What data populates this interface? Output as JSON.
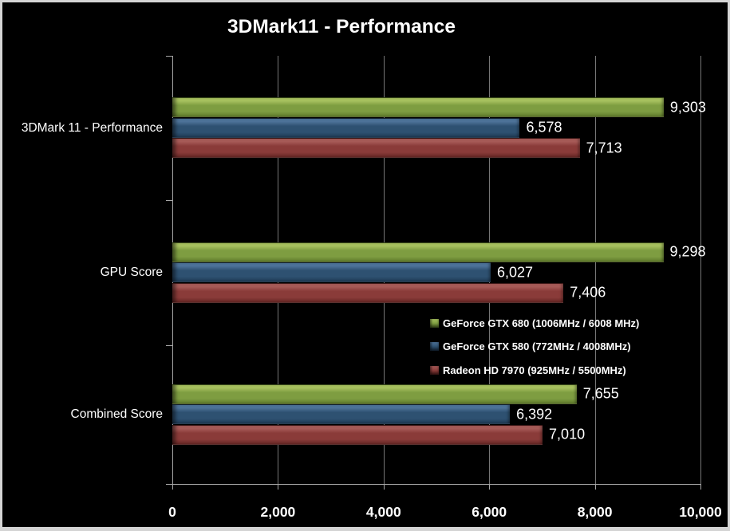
{
  "title": "3DMark11 - Performance",
  "chart_data": {
    "type": "bar",
    "orientation": "horizontal",
    "title": "3DMark11 - Performance",
    "categories": [
      "3DMark 11 - Performance",
      "GPU Score",
      "Combined Score"
    ],
    "series": [
      {
        "name": "GeForce GTX 680 (1006MHz / 6008 MHz)",
        "values": [
          9303,
          9298,
          7655
        ],
        "value_labels": [
          "9,303",
          "9,298",
          "7,655"
        ],
        "color": "#7e9d41",
        "color_light": "#a6c05e",
        "color_dark": "#5f7b2c"
      },
      {
        "name": "GeForce GTX 580 (772MHz / 4008MHz)",
        "values": [
          6578,
          6027,
          6392
        ],
        "value_labels": [
          "6,578",
          "6,027",
          "6,392"
        ],
        "color": "#2e5171",
        "color_light": "#4d7298",
        "color_dark": "#1f3a54"
      },
      {
        "name": "Radeon HD 7970 (925MHz / 5500MHz)",
        "values": [
          7713,
          7406,
          7010
        ],
        "value_labels": [
          "7,713",
          "7,406",
          "7,010"
        ],
        "color": "#8a3b39",
        "color_light": "#a65a57",
        "color_dark": "#662725"
      }
    ],
    "xlim": [
      0,
      10000
    ],
    "x_ticks": [
      0,
      2000,
      4000,
      6000,
      8000,
      10000
    ],
    "x_tick_labels": [
      "0",
      "2,000",
      "4,000",
      "6,000",
      "8,000",
      "10,000"
    ],
    "grid": "vertical-major",
    "legend_position": "inside-middle-right",
    "background": "#000000",
    "text_color": "#ffffff",
    "gridline_color": "#767676",
    "axis_color": "#a6a6a6",
    "frame_color": "#d4d4d4"
  }
}
